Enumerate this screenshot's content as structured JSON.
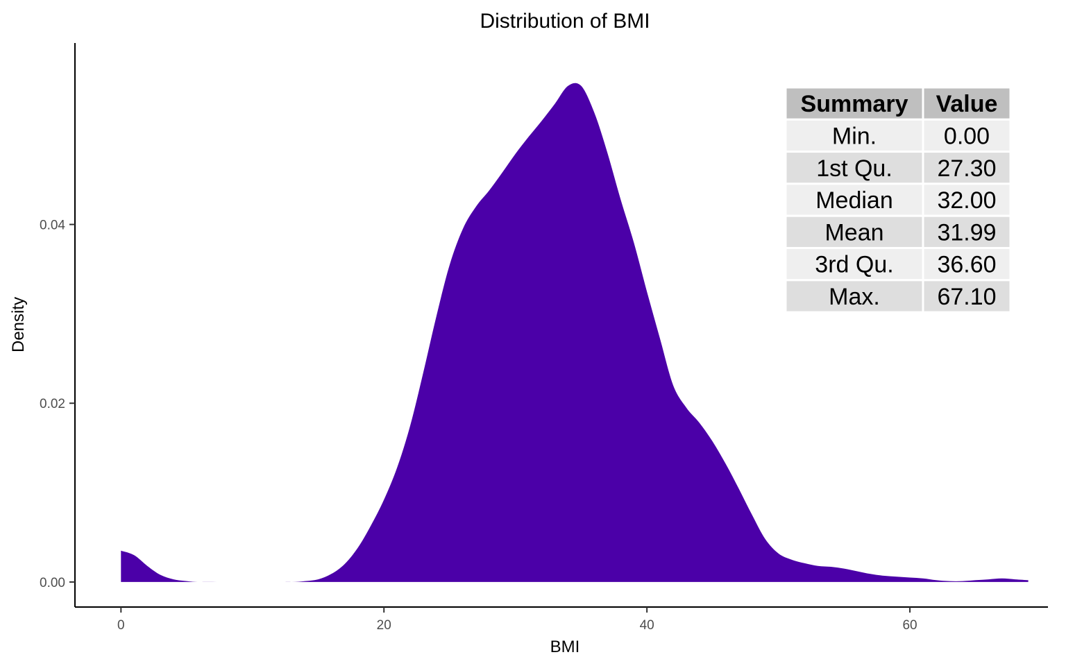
{
  "chart_data": {
    "type": "area",
    "title": "Distribution of BMI",
    "xlabel": "BMI",
    "ylabel": "Density",
    "xlim": [
      -3.5,
      70.5
    ],
    "ylim": [
      -0.0028,
      0.0603
    ],
    "x_ticks": [
      0,
      20,
      40,
      60
    ],
    "x_tick_labels": [
      "0",
      "20",
      "40",
      "60"
    ],
    "y_ticks": [
      0,
      0.02,
      0.04
    ],
    "y_tick_labels": [
      "0.00",
      "0.02",
      "0.04"
    ],
    "grid": false,
    "fill_color": "#4b00a8",
    "series": [
      {
        "x": [
          0,
          1,
          2,
          3,
          4,
          5,
          6,
          8,
          10,
          12,
          13,
          14,
          15,
          16,
          17,
          18,
          19,
          20,
          21,
          22,
          23,
          24,
          25,
          26,
          27,
          28,
          29,
          30,
          31,
          32,
          33,
          34,
          35,
          36,
          37,
          38,
          39,
          40,
          41,
          42,
          43,
          44,
          45,
          46,
          47,
          48,
          49,
          50,
          51,
          52,
          53,
          54,
          55,
          56,
          57,
          58,
          59,
          60,
          61,
          62,
          63,
          64,
          65,
          66,
          67,
          68,
          69
        ],
        "y": [
          0.0035,
          0.003,
          0.0018,
          0.0008,
          0.0003,
          0.0001,
          0.0,
          0.0,
          0.0,
          0.0,
          0.0,
          0.0001,
          0.0003,
          0.0009,
          0.002,
          0.0038,
          0.0063,
          0.0092,
          0.0128,
          0.0175,
          0.0235,
          0.0298,
          0.0355,
          0.0395,
          0.042,
          0.0438,
          0.0458,
          0.0479,
          0.0498,
          0.0516,
          0.0535,
          0.0555,
          0.0555,
          0.0525,
          0.048,
          0.0428,
          0.038,
          0.0325,
          0.0272,
          0.022,
          0.0195,
          0.0178,
          0.0157,
          0.0132,
          0.0104,
          0.0075,
          0.0048,
          0.0032,
          0.0025,
          0.0021,
          0.0018,
          0.0017,
          0.0015,
          0.0012,
          0.0009,
          0.0007,
          0.0006,
          0.0005,
          0.0004,
          0.0002,
          0.0001,
          0.0001,
          0.0002,
          0.0003,
          0.0004,
          0.0003,
          0.0002
        ]
      }
    ]
  },
  "summary_table": {
    "headers": [
      "Summary",
      "Value"
    ],
    "rows": [
      [
        "Min.",
        "0.00"
      ],
      [
        "1st Qu.",
        "27.30"
      ],
      [
        "Median",
        "32.00"
      ],
      [
        "Mean",
        "31.99"
      ],
      [
        "3rd Qu.",
        "36.60"
      ],
      [
        "Max.",
        "67.10"
      ]
    ],
    "header_color": "#bfbfbf",
    "row_colors": [
      "#efefef",
      "#dedede"
    ]
  }
}
